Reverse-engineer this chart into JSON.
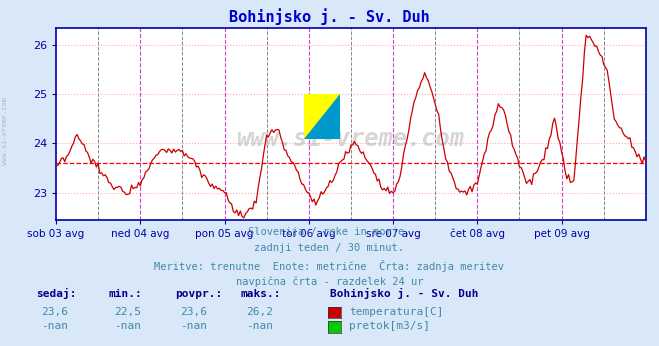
{
  "title": "Bohinjsko j. - Sv. Duh",
  "title_color": "#0000cc",
  "bg_color": "#d8e8f8",
  "plot_bg_color": "#ffffff",
  "grid_h_color": "#ffaaaa",
  "grid_v_color": "#dddddd",
  "axis_color": "#0000aa",
  "ylim": [
    22.45,
    26.35
  ],
  "yticks": [
    23,
    24,
    25,
    26
  ],
  "n_points": 337,
  "xlim": [
    0,
    336
  ],
  "xlabel_ticks": [
    0,
    48,
    96,
    144,
    192,
    240,
    288
  ],
  "xlabel_labels": [
    "sob 03 avg",
    "ned 04 avg",
    "pon 05 avg",
    "tor 06 avg",
    "sre 07 avg",
    "čet 08 avg",
    "pet 09 avg"
  ],
  "line_color": "#cc0000",
  "avg_line_color": "#ff0000",
  "avg_value": 23.6,
  "watermark_text": "www.si-vreme.com",
  "side_text": "www.si-vreme.com",
  "footer_line1": "Slovenija / reke in morje.",
  "footer_line2": "zadnji teden / 30 minut.",
  "footer_line3": "Meritve: trenutne  Enote: metrične  Črta: zadnja meritev",
  "footer_line4": "navpična črta - razdelek 24 ur",
  "footer_color": "#4488aa",
  "legend_title": "Bohinjsko j. - Sv. Duh",
  "legend_items": [
    "temperatura[C]",
    "pretok[m3/s]"
  ],
  "legend_colors": [
    "#cc0000",
    "#00cc00"
  ],
  "stats_headers": [
    "sedaj:",
    "min.:",
    "povpr.:",
    "maks.:"
  ],
  "stats_values_temp": [
    "23,6",
    "22,5",
    "23,6",
    "26,2"
  ],
  "stats_values_flow": [
    "-nan",
    "-nan",
    "-nan",
    "-nan"
  ],
  "stats_color": "#4488aa",
  "stats_bold_color": "#000088",
  "day_line_color": "#cc44cc",
  "noon_line_color": "#888888",
  "logo_yellow": "#ffff00",
  "logo_blue": "#0099cc"
}
